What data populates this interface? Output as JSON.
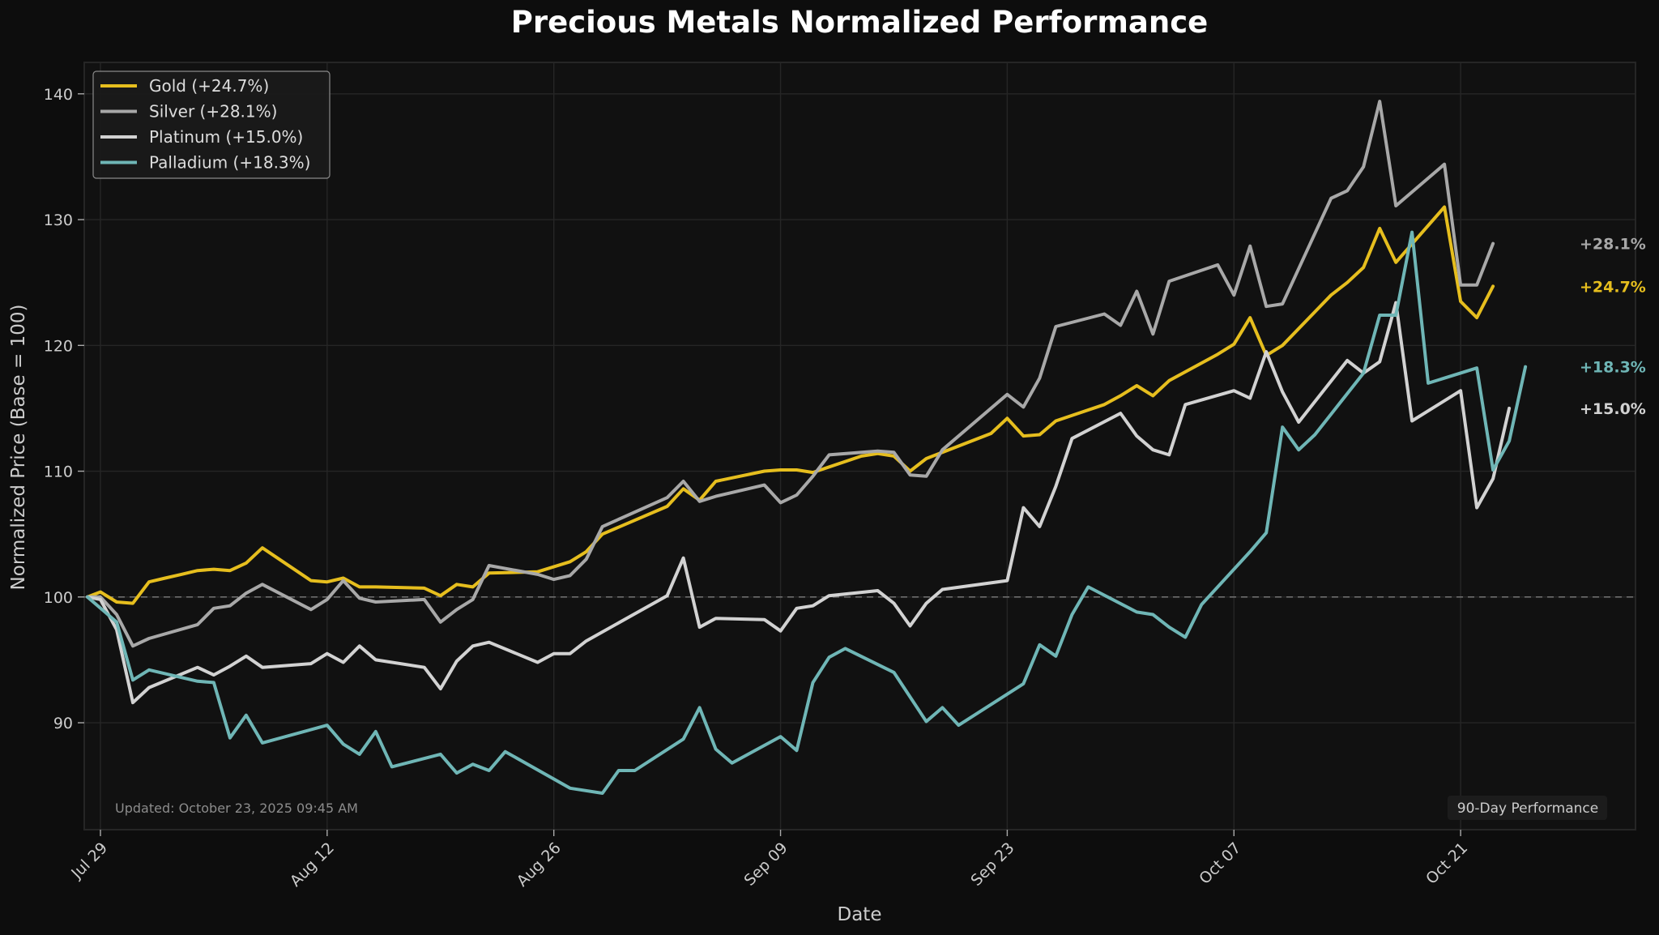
{
  "chart_data": {
    "type": "line",
    "title": "Precious Metals Normalized Performance",
    "xlabel": "Date",
    "ylabel": "Normalized Price (Base = 100)",
    "ylim": [
      81.5,
      142.5
    ],
    "yticks": [
      90,
      100,
      110,
      120,
      130,
      140
    ],
    "x_days_range": [
      -1.0,
      94.8
    ],
    "xticks": [
      {
        "day": 0,
        "label": "Jul 29"
      },
      {
        "day": 14,
        "label": "Aug 12"
      },
      {
        "day": 28,
        "label": "Aug 26"
      },
      {
        "day": 42,
        "label": "Sep 09"
      },
      {
        "day": 56,
        "label": "Sep 23"
      },
      {
        "day": 70,
        "label": "Oct 07"
      },
      {
        "day": 84,
        "label": "Oct 21"
      }
    ],
    "baseline": 100,
    "grid": true,
    "legend_position": "top-left",
    "footer_note": "Updated: October 23, 2025 09:45 AM",
    "corner_badge": "90-Day Performance",
    "series": [
      {
        "name": "Gold",
        "legend_label": "Gold (+24.7%)",
        "end_label": "+24.7%",
        "color": "#e6be1e",
        "points": [
          [
            -0.8,
            100.0
          ],
          [
            0,
            100.4
          ],
          [
            1,
            99.6
          ],
          [
            2,
            99.5
          ],
          [
            3,
            101.2
          ],
          [
            4,
            101.5
          ],
          [
            5,
            101.8
          ],
          [
            6,
            102.1
          ],
          [
            7,
            102.2
          ],
          [
            8,
            102.1
          ],
          [
            9,
            102.7
          ],
          [
            10,
            103.9
          ],
          [
            13,
            101.3
          ],
          [
            14,
            101.2
          ],
          [
            15,
            101.5
          ],
          [
            16,
            100.8
          ],
          [
            17,
            100.8
          ],
          [
            20,
            100.7
          ],
          [
            21,
            100.1
          ],
          [
            22,
            101.0
          ],
          [
            23,
            100.8
          ],
          [
            24,
            101.9
          ],
          [
            27,
            102.0
          ],
          [
            29,
            102.8
          ],
          [
            30,
            103.6
          ],
          [
            31,
            105.0
          ],
          [
            35,
            107.2
          ],
          [
            36,
            108.6
          ],
          [
            37,
            107.7
          ],
          [
            38,
            109.2
          ],
          [
            41,
            110.0
          ],
          [
            42,
            110.1
          ],
          [
            43,
            110.1
          ],
          [
            44,
            109.9
          ],
          [
            47,
            111.2
          ],
          [
            48,
            111.4
          ],
          [
            49,
            111.2
          ],
          [
            50,
            110.0
          ],
          [
            51,
            111.0
          ],
          [
            55,
            113.0
          ],
          [
            56,
            114.2
          ],
          [
            57,
            112.8
          ],
          [
            58,
            112.9
          ],
          [
            59,
            114.0
          ],
          [
            62,
            115.3
          ],
          [
            63,
            116.0
          ],
          [
            64,
            116.8
          ],
          [
            65,
            116.0
          ],
          [
            66,
            117.2
          ],
          [
            69,
            119.3
          ],
          [
            70,
            120.1
          ],
          [
            71,
            122.2
          ],
          [
            72,
            119.2
          ],
          [
            73,
            120.0
          ],
          [
            76,
            124.0
          ],
          [
            77,
            125.0
          ],
          [
            78,
            126.2
          ],
          [
            79,
            129.3
          ],
          [
            80,
            126.6
          ],
          [
            83,
            131.0
          ],
          [
            84,
            123.5
          ],
          [
            85,
            122.2
          ],
          [
            86,
            124.7
          ]
        ]
      },
      {
        "name": "Silver",
        "legend_label": "Silver (+28.1%)",
        "end_label": "+28.1%",
        "color": "#a8a8a8",
        "points": [
          [
            -0.8,
            100.0
          ],
          [
            0,
            100.0
          ],
          [
            1,
            98.6
          ],
          [
            2,
            96.1
          ],
          [
            3,
            96.7
          ],
          [
            6,
            97.8
          ],
          [
            7,
            99.1
          ],
          [
            8,
            99.3
          ],
          [
            9,
            100.3
          ],
          [
            10,
            101.0
          ],
          [
            13,
            99.0
          ],
          [
            14,
            99.8
          ],
          [
            15,
            101.3
          ],
          [
            16,
            99.9
          ],
          [
            17,
            99.6
          ],
          [
            20,
            99.8
          ],
          [
            21,
            98.0
          ],
          [
            22,
            99.0
          ],
          [
            23,
            99.8
          ],
          [
            24,
            102.5
          ],
          [
            27,
            101.8
          ],
          [
            28,
            101.4
          ],
          [
            29,
            101.7
          ],
          [
            30,
            103.0
          ],
          [
            31,
            105.6
          ],
          [
            35,
            107.9
          ],
          [
            36,
            109.2
          ],
          [
            37,
            107.6
          ],
          [
            38,
            108.0
          ],
          [
            41,
            108.9
          ],
          [
            42,
            107.5
          ],
          [
            43,
            108.1
          ],
          [
            44,
            109.6
          ],
          [
            45,
            111.3
          ],
          [
            48,
            111.6
          ],
          [
            49,
            111.5
          ],
          [
            50,
            109.7
          ],
          [
            51,
            109.6
          ],
          [
            52,
            111.7
          ],
          [
            56,
            116.1
          ],
          [
            57,
            115.1
          ],
          [
            58,
            117.4
          ],
          [
            59,
            121.5
          ],
          [
            62,
            122.5
          ],
          [
            63,
            121.6
          ],
          [
            64,
            124.3
          ],
          [
            65,
            120.9
          ],
          [
            66,
            125.1
          ],
          [
            69,
            126.4
          ],
          [
            70,
            124.0
          ],
          [
            71,
            127.9
          ],
          [
            72,
            123.1
          ],
          [
            73,
            123.3
          ],
          [
            76,
            131.7
          ],
          [
            77,
            132.3
          ],
          [
            78,
            134.2
          ],
          [
            79,
            139.4
          ],
          [
            80,
            131.1
          ],
          [
            83,
            134.4
          ],
          [
            84,
            124.8
          ],
          [
            85,
            124.8
          ],
          [
            86,
            128.1
          ]
        ]
      },
      {
        "name": "Platinum",
        "legend_label": "Platinum (+15.0%)",
        "end_label": "+15.0%",
        "color": "#d2d2d2",
        "points": [
          [
            -0.8,
            100.0
          ],
          [
            0,
            99.8
          ],
          [
            1,
            97.4
          ],
          [
            2,
            91.6
          ],
          [
            3,
            92.8
          ],
          [
            6,
            94.4
          ],
          [
            7,
            93.8
          ],
          [
            8,
            94.5
          ],
          [
            9,
            95.3
          ],
          [
            10,
            94.4
          ],
          [
            13,
            94.7
          ],
          [
            14,
            95.5
          ],
          [
            15,
            94.8
          ],
          [
            16,
            96.1
          ],
          [
            17,
            95.0
          ],
          [
            20,
            94.4
          ],
          [
            21,
            92.7
          ],
          [
            22,
            94.9
          ],
          [
            23,
            96.1
          ],
          [
            24,
            96.4
          ],
          [
            27,
            94.8
          ],
          [
            28,
            95.5
          ],
          [
            29,
            95.5
          ],
          [
            30,
            96.5
          ],
          [
            35,
            100.1
          ],
          [
            36,
            103.1
          ],
          [
            37,
            97.6
          ],
          [
            38,
            98.3
          ],
          [
            41,
            98.2
          ],
          [
            42,
            97.3
          ],
          [
            43,
            99.1
          ],
          [
            44,
            99.3
          ],
          [
            45,
            100.1
          ],
          [
            48,
            100.5
          ],
          [
            49,
            99.5
          ],
          [
            50,
            97.7
          ],
          [
            51,
            99.5
          ],
          [
            52,
            100.6
          ],
          [
            56,
            101.3
          ],
          [
            57,
            107.1
          ],
          [
            58,
            105.6
          ],
          [
            59,
            108.8
          ],
          [
            60,
            112.6
          ],
          [
            63,
            114.6
          ],
          [
            64,
            112.8
          ],
          [
            65,
            111.7
          ],
          [
            66,
            111.3
          ],
          [
            67,
            115.3
          ],
          [
            70,
            116.4
          ],
          [
            71,
            115.8
          ],
          [
            72,
            119.5
          ],
          [
            73,
            116.3
          ],
          [
            74,
            113.9
          ],
          [
            77,
            118.8
          ],
          [
            78,
            117.8
          ],
          [
            79,
            118.7
          ],
          [
            80,
            123.4
          ],
          [
            81,
            114.0
          ],
          [
            84,
            116.4
          ],
          [
            85,
            107.1
          ],
          [
            86,
            109.4
          ],
          [
            87,
            115.0
          ]
        ]
      },
      {
        "name": "Palladium",
        "legend_label": "Palladium (+18.3%)",
        "end_label": "+18.3%",
        "color": "#6fb6b6",
        "points": [
          [
            -0.8,
            100.0
          ],
          [
            1,
            98.0
          ],
          [
            2,
            93.4
          ],
          [
            3,
            94.2
          ],
          [
            6,
            93.3
          ],
          [
            7,
            93.2
          ],
          [
            8,
            88.8
          ],
          [
            9,
            90.6
          ],
          [
            10,
            88.4
          ],
          [
            14,
            89.8
          ],
          [
            15,
            88.3
          ],
          [
            16,
            87.5
          ],
          [
            17,
            89.3
          ],
          [
            18,
            86.5
          ],
          [
            21,
            87.5
          ],
          [
            22,
            86.0
          ],
          [
            23,
            86.7
          ],
          [
            24,
            86.2
          ],
          [
            25,
            87.7
          ],
          [
            29,
            84.8
          ],
          [
            31,
            84.4
          ],
          [
            32,
            86.2
          ],
          [
            33,
            86.2
          ],
          [
            36,
            88.7
          ],
          [
            37,
            91.2
          ],
          [
            38,
            87.9
          ],
          [
            39,
            86.8
          ],
          [
            42,
            88.9
          ],
          [
            43,
            87.8
          ],
          [
            44,
            93.2
          ],
          [
            45,
            95.2
          ],
          [
            46,
            95.9
          ],
          [
            49,
            94.0
          ],
          [
            51,
            90.1
          ],
          [
            52,
            91.2
          ],
          [
            53,
            89.8
          ],
          [
            57,
            93.1
          ],
          [
            58,
            96.2
          ],
          [
            59,
            95.3
          ],
          [
            60,
            98.6
          ],
          [
            61,
            100.8
          ],
          [
            64,
            98.8
          ],
          [
            65,
            98.6
          ],
          [
            66,
            97.6
          ],
          [
            67,
            96.8
          ],
          [
            68,
            99.4
          ],
          [
            71,
            103.6
          ],
          [
            72,
            105.1
          ],
          [
            73,
            113.5
          ],
          [
            74,
            111.7
          ],
          [
            75,
            112.9
          ],
          [
            78,
            117.8
          ],
          [
            79,
            122.4
          ],
          [
            80,
            122.4
          ],
          [
            81,
            129.0
          ],
          [
            82,
            117.0
          ],
          [
            85,
            118.2
          ],
          [
            86,
            110.1
          ],
          [
            87,
            112.4
          ],
          [
            88,
            118.3
          ]
        ]
      }
    ]
  }
}
